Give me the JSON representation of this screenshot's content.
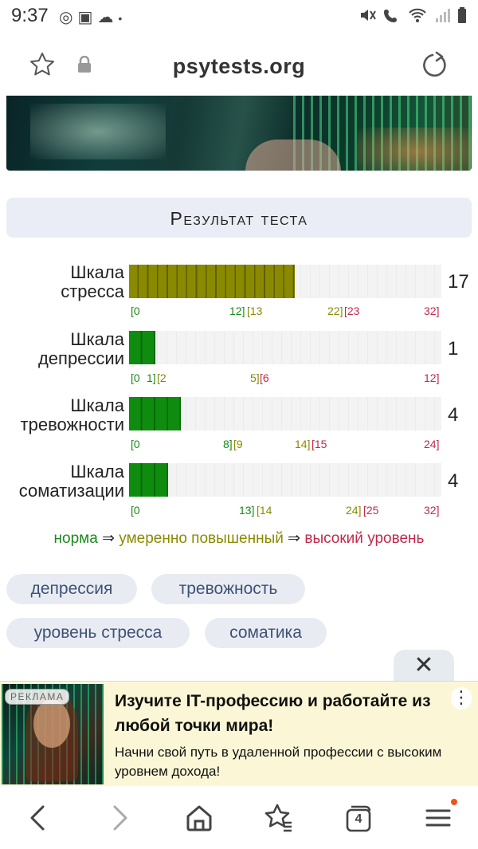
{
  "status_bar": {
    "time": "9:37",
    "left_icons": [
      "whatsapp-icon",
      "image-icon",
      "cloud-icon",
      "dot-icon"
    ],
    "right_icons": [
      "mute-icon",
      "call-icon",
      "wifi-icon",
      "signal-icon",
      "battery-icon"
    ]
  },
  "address_bar": {
    "url": "psytests.org",
    "left_icons": [
      "star-icon",
      "lock-icon"
    ],
    "right_icon": "reload-icon"
  },
  "result": {
    "title": "Результат теста"
  },
  "scales": [
    {
      "label_line1": "Шкала",
      "label_line2": "стресса",
      "value": "17",
      "max": 32,
      "fill_fraction": 0.53,
      "fill_color": "olive",
      "ticks": [
        {
          "text": "[0",
          "cls": "g"
        },
        {
          "text": "12]",
          "cls": "g"
        },
        {
          "text": "[13",
          "cls": "y"
        },
        {
          "text": "22]",
          "cls": "y"
        },
        {
          "text": "[23",
          "cls": "r"
        },
        {
          "text": "32]",
          "cls": "r"
        }
      ]
    },
    {
      "label_line1": "Шкала",
      "label_line2": "депрессии",
      "value": "1",
      "max": 12,
      "fill_fraction": 0.083,
      "fill_color": "green",
      "ticks": [
        {
          "text": "[0",
          "cls": "g"
        },
        {
          "text": "1]",
          "cls": "g"
        },
        {
          "text": "[2",
          "cls": "y"
        },
        {
          "text": "5]",
          "cls": "y"
        },
        {
          "text": "[6",
          "cls": "r"
        },
        {
          "text": "12]",
          "cls": "r"
        }
      ]
    },
    {
      "label_line1": "Шкала",
      "label_line2": "тревожности",
      "value": "4",
      "max": 24,
      "fill_fraction": 0.167,
      "fill_color": "green",
      "ticks": [
        {
          "text": "[0",
          "cls": "g"
        },
        {
          "text": "8]",
          "cls": "g"
        },
        {
          "text": "[9",
          "cls": "y"
        },
        {
          "text": "14]",
          "cls": "y"
        },
        {
          "text": "[15",
          "cls": "r"
        },
        {
          "text": "24]",
          "cls": "r"
        }
      ]
    },
    {
      "label_line1": "Шкала",
      "label_line2": "соматизации",
      "value": "4",
      "max": 32,
      "fill_fraction": 0.125,
      "fill_color": "green",
      "ticks": [
        {
          "text": "[0",
          "cls": "g"
        },
        {
          "text": "13]",
          "cls": "g"
        },
        {
          "text": "[14",
          "cls": "y"
        },
        {
          "text": "24]",
          "cls": "y"
        },
        {
          "text": "[25",
          "cls": "r"
        },
        {
          "text": "32]",
          "cls": "r"
        }
      ]
    }
  ],
  "legend": {
    "norm": "норма",
    "arrow": "⇒",
    "moderate": "умеренно повышенный",
    "high": "высокий уровень"
  },
  "tags": [
    "депрессия",
    "тревожность",
    "уровень стресса",
    "соматика"
  ],
  "ad": {
    "badge": "РЕКЛАМА",
    "title": "Изучите IT-профессию и работайте из любой точки мира!",
    "text": "Начни свой путь в удаленной профессии с высоким уровнем дохода!",
    "close_symbol": "✕",
    "menu_symbol": "⋮"
  },
  "bottom_nav": {
    "tab_count": "4",
    "icons": [
      "back-icon",
      "forward-icon",
      "home-icon",
      "bookmarks-icon",
      "tabs-icon",
      "menu-icon"
    ]
  },
  "colors": {
    "olive_bar": "#8a8a00",
    "green_bar": "#0f8c0f",
    "norm": "#1b8a1b",
    "moderate": "#8a8a00",
    "high": "#c3284c",
    "tag_text": "#3e5277"
  }
}
